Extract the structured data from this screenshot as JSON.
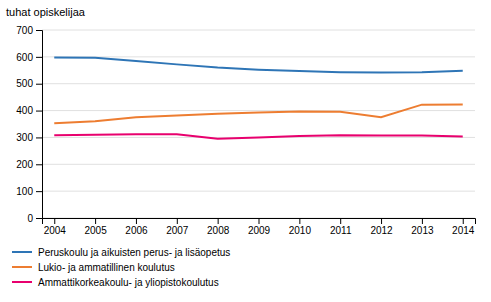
{
  "chart_data": {
    "type": "line",
    "y_label": "tuhat opiskelijaa",
    "x": [
      2004,
      2005,
      2006,
      2007,
      2008,
      2009,
      2010,
      2011,
      2012,
      2013,
      2014
    ],
    "series": [
      {
        "name": "Peruskoulu ja aikuisten perus- ja lisäopetus",
        "color": "#2E75B6",
        "values": [
          598,
          597,
          585,
          572,
          560,
          552,
          547,
          543,
          542,
          543,
          548
        ]
      },
      {
        "name": "Lukio- ja ammatillinen koulutus",
        "color": "#ED7D31",
        "values": [
          353,
          360,
          375,
          382,
          388,
          393,
          397,
          396,
          375,
          422,
          423
        ]
      },
      {
        "name": "Ammattikorkeakoulu- ja yliopistokoulutus",
        "color": "#E8006E",
        "values": [
          308,
          310,
          312,
          312,
          295,
          300,
          305,
          308,
          307,
          307,
          303
        ]
      }
    ],
    "xlim": [
      2003.7,
      2014.3
    ],
    "xticks": [
      2004,
      2005,
      2006,
      2007,
      2008,
      2009,
      2010,
      2011,
      2012,
      2013,
      2014
    ],
    "ylim": [
      0,
      700
    ],
    "yticks": [
      0,
      100,
      200,
      300,
      400,
      500,
      600,
      700
    ],
    "grid": true,
    "legend": "bottom"
  }
}
